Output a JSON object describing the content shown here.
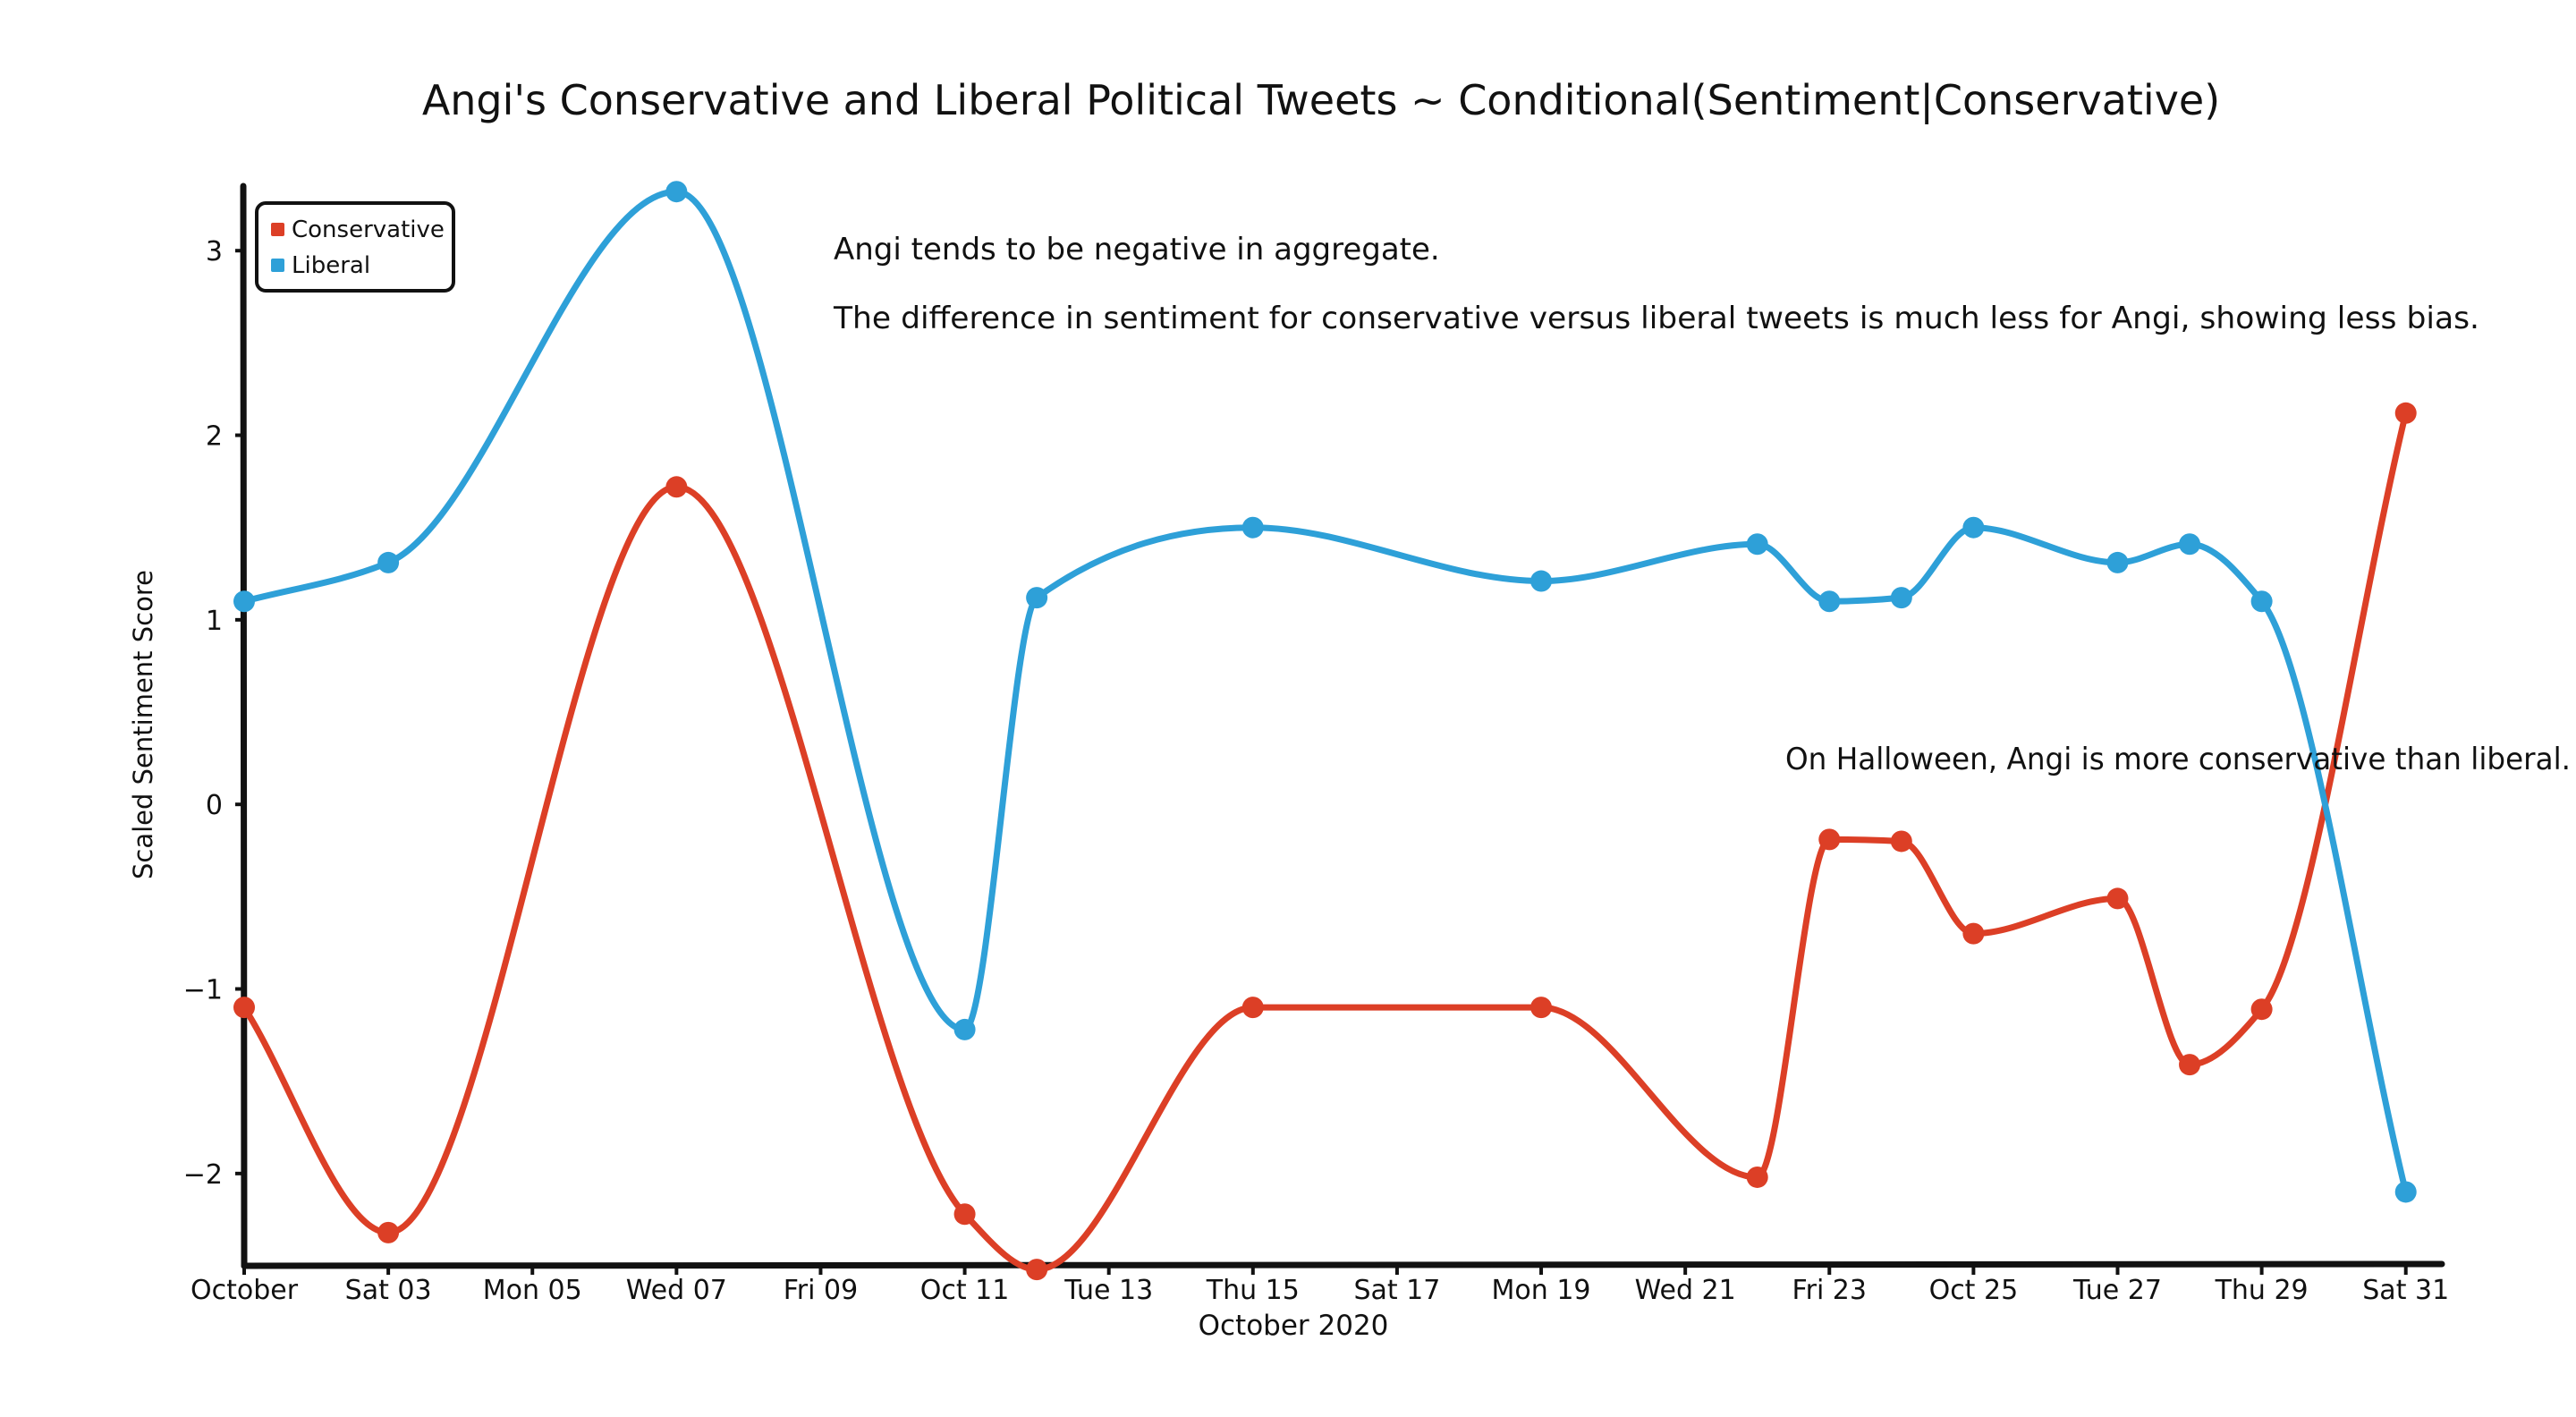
{
  "chart_data": {
    "type": "line",
    "title": "Angi's Conservative and Liberal Political Tweets ~ Conditional(Sentiment|Conservative)",
    "xlabel": "October 2020",
    "ylabel": "Scaled Sentiment Score",
    "x_tick_labels": [
      "October",
      "Sat 03",
      "Mon 05",
      "Wed 07",
      "Fri 09",
      "Oct 11",
      "Tue 13",
      "Thu 15",
      "Sat 17",
      "Mon 19",
      "Wed 21",
      "Fri 23",
      "Oct 25",
      "Tue 27",
      "Thu 29",
      "Sat 31"
    ],
    "y_ticks": [
      -2,
      -1,
      0,
      1,
      2,
      3
    ],
    "xlim": [
      1,
      31.5
    ],
    "ylim": [
      -2.5,
      3.35
    ],
    "grid": false,
    "legend_position": "top-left",
    "colors": {
      "Conservative": "#dc3f26",
      "Liberal": "#2ea0d8"
    },
    "series": [
      {
        "name": "Conservative",
        "x": [
          1,
          3,
          7,
          11,
          12,
          15,
          19,
          22,
          23,
          24,
          25,
          27,
          28,
          29,
          31
        ],
        "values": [
          -1.1,
          -2.32,
          1.72,
          -2.22,
          -2.52,
          -1.1,
          -1.1,
          -2.02,
          -0.19,
          -0.2,
          -0.7,
          -0.51,
          -1.41,
          -1.11,
          2.12
        ]
      },
      {
        "name": "Liberal",
        "x": [
          1,
          3,
          7,
          11,
          12,
          15,
          19,
          22,
          23,
          24,
          25,
          27,
          28,
          29,
          31
        ],
        "values": [
          1.1,
          1.31,
          3.32,
          -1.22,
          1.12,
          1.5,
          1.21,
          1.41,
          1.1,
          1.12,
          1.5,
          1.31,
          1.41,
          1.1,
          -2.1
        ]
      }
    ],
    "annotations": [
      "Angi tends to be negative in aggregate.",
      "The difference in sentiment for conservative versus liberal tweets is much less for Angi, showing less bias.",
      "On Halloween, Angi is more conservative than liberal."
    ]
  }
}
